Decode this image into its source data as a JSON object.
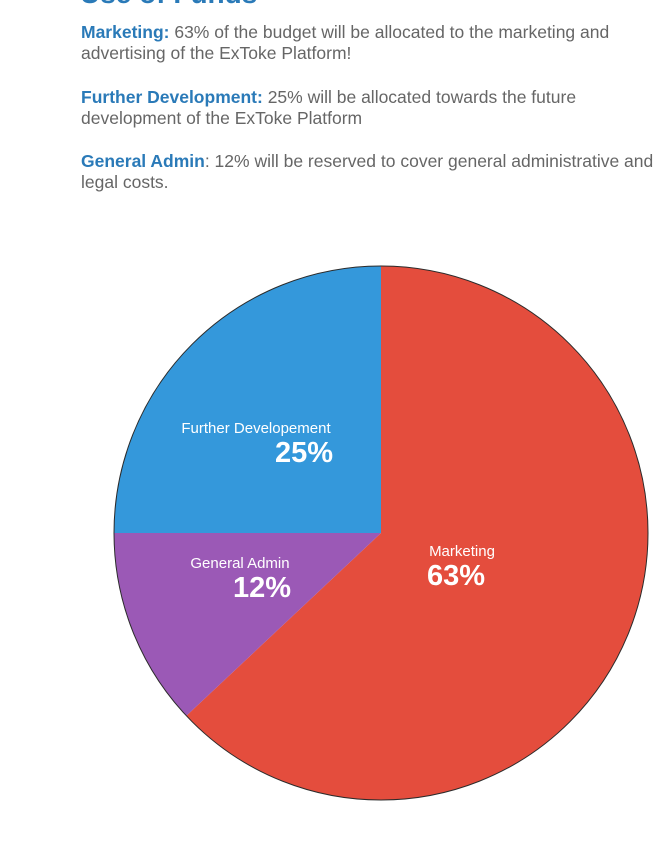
{
  "heading": "Use of Funds",
  "paragraphs": [
    {
      "term": "Marketing:",
      "text": " 63% of the budget will be allocated to the marketing and advertising of the ExToke Platform!"
    },
    {
      "term": "Further Development:",
      "text": " 25% will be allocated towards the future development of the ExToke Platform"
    },
    {
      "term": "General Admin",
      "text": ": 12% will be reserved to cover general administrative and legal costs."
    }
  ],
  "chart_data": {
    "type": "pie",
    "slices": [
      {
        "label": "Marketing",
        "value": 63,
        "value_label": "63%",
        "color": "#e44d3d"
      },
      {
        "label": "General Admin",
        "value": 12,
        "value_label": "12%",
        "color": "#9b59b6"
      },
      {
        "label": "Further Developement",
        "value": 25,
        "value_label": "25%",
        "color": "#3498db"
      }
    ],
    "start": "12 o'clock",
    "direction": "clockwise",
    "outline_color": "#2b2b2b"
  }
}
